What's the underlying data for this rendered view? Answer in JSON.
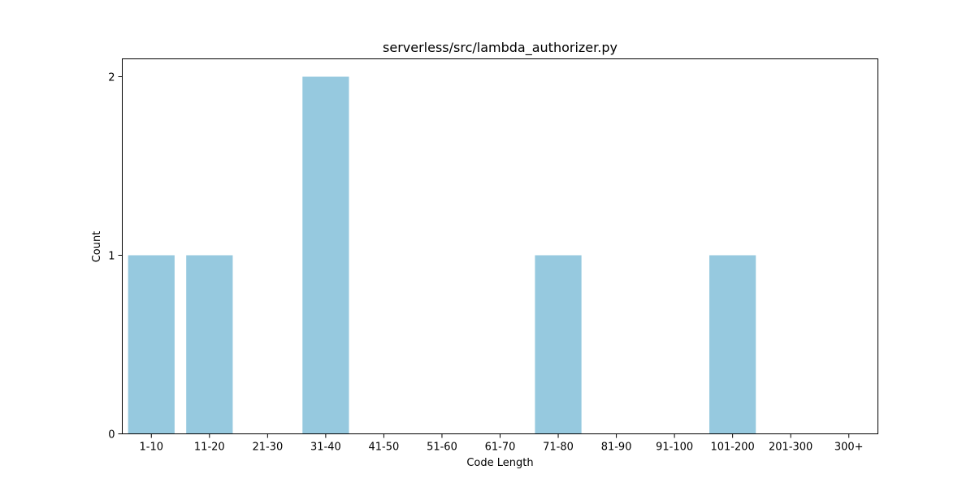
{
  "chart_data": {
    "type": "bar",
    "title": "serverless/src/lambda_authorizer.py",
    "xlabel": "Code Length",
    "ylabel": "Count",
    "categories": [
      "1-10",
      "11-20",
      "21-30",
      "31-40",
      "41-50",
      "51-60",
      "61-70",
      "71-80",
      "81-90",
      "91-100",
      "101-200",
      "201-300",
      "300+"
    ],
    "values": [
      1,
      1,
      0,
      2,
      0,
      0,
      0,
      1,
      0,
      0,
      1,
      0,
      0
    ],
    "ylim": [
      0,
      2.1
    ],
    "yticks": [
      "0",
      "1",
      "2"
    ],
    "bar_color": "#96c9df",
    "grid": false,
    "legend": "none"
  }
}
